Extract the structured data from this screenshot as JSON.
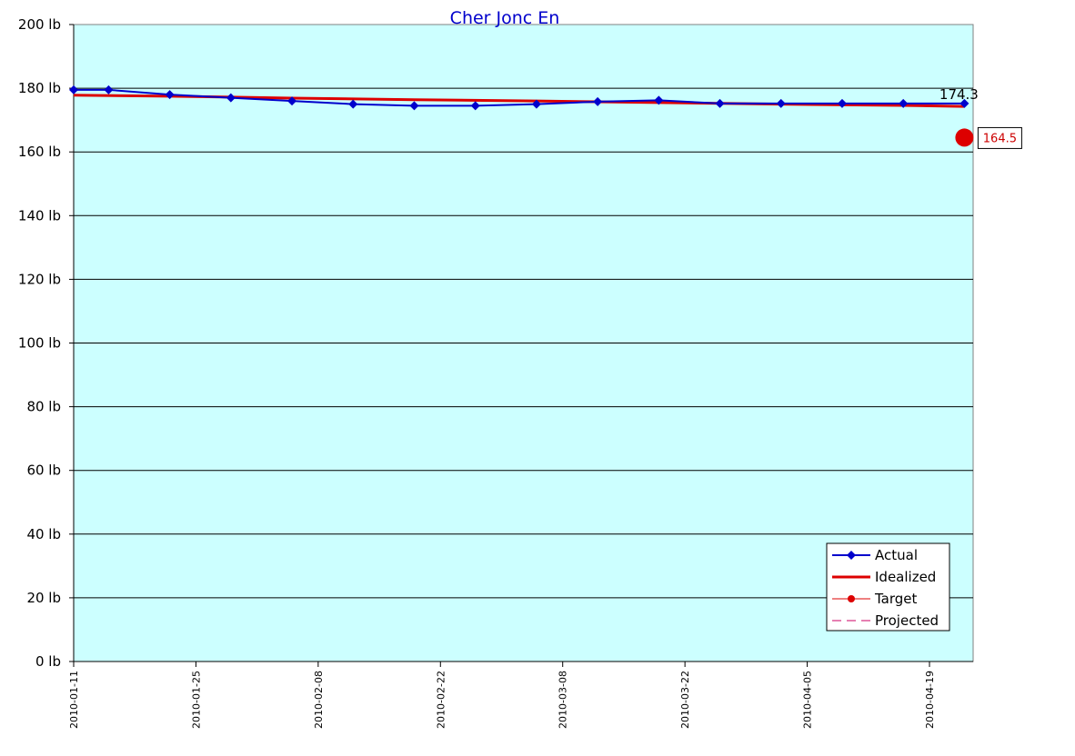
{
  "chart_data": {
    "type": "line",
    "title": "Cher Jonc En",
    "ylim": [
      0,
      200
    ],
    "y_ticks": [
      {
        "value": 0,
        "label": "0 lb"
      },
      {
        "value": 20,
        "label": "20 lb"
      },
      {
        "value": 40,
        "label": "40 lb"
      },
      {
        "value": 60,
        "label": "60 lb"
      },
      {
        "value": 80,
        "label": "80 lb"
      },
      {
        "value": 100,
        "label": "100 lb"
      },
      {
        "value": 120,
        "label": "120 lb"
      },
      {
        "value": 140,
        "label": "140 lb"
      },
      {
        "value": 160,
        "label": "160 lb"
      },
      {
        "value": 180,
        "label": "180 lb"
      },
      {
        "value": 200,
        "label": "200 lb"
      }
    ],
    "xlim": [
      "2010-01-11",
      "2010-04-24"
    ],
    "x_ticks": [
      "2010-01-11",
      "2010-01-25",
      "2010-02-08",
      "2010-02-22",
      "2010-03-08",
      "2010-03-22",
      "2010-04-05",
      "2010-04-19"
    ],
    "grid": "horizontal",
    "plot_background": "#ccffff",
    "legend_position": "bottom-right",
    "series": [
      {
        "name": "Actual",
        "color": "#0000cc",
        "marker": "diamond",
        "points": [
          {
            "x": "2010-01-11",
            "y": 179.5
          },
          {
            "x": "2010-01-15",
            "y": 179.5
          },
          {
            "x": "2010-01-22",
            "y": 178.0
          },
          {
            "x": "2010-01-29",
            "y": 177.0
          },
          {
            "x": "2010-02-05",
            "y": 176.0
          },
          {
            "x": "2010-02-12",
            "y": 175.0
          },
          {
            "x": "2010-02-19",
            "y": 174.5
          },
          {
            "x": "2010-02-26",
            "y": 174.5
          },
          {
            "x": "2010-03-05",
            "y": 175.0
          },
          {
            "x": "2010-03-12",
            "y": 175.8
          },
          {
            "x": "2010-03-19",
            "y": 176.2
          },
          {
            "x": "2010-03-26",
            "y": 175.2
          },
          {
            "x": "2010-04-02",
            "y": 175.2
          },
          {
            "x": "2010-04-09",
            "y": 175.2
          },
          {
            "x": "2010-04-16",
            "y": 175.2
          },
          {
            "x": "2010-04-23",
            "y": 175.2
          }
        ]
      },
      {
        "name": "Idealized",
        "color": "#dd0000",
        "marker": "none",
        "points": [
          {
            "x": "2010-01-11",
            "y": 177.8
          },
          {
            "x": "2010-01-22",
            "y": 177.5
          },
          {
            "x": "2010-02-05",
            "y": 176.9
          },
          {
            "x": "2010-02-19",
            "y": 176.4
          },
          {
            "x": "2010-03-05",
            "y": 176.0
          },
          {
            "x": "2010-03-19",
            "y": 175.5
          },
          {
            "x": "2010-04-02",
            "y": 175.0
          },
          {
            "x": "2010-04-16",
            "y": 174.6
          },
          {
            "x": "2010-04-23",
            "y": 174.3
          }
        ]
      },
      {
        "name": "Target",
        "color": "#dd0000",
        "marker": "circle",
        "points": [
          {
            "x": "2010-04-23",
            "y": 164.5
          }
        ]
      },
      {
        "name": "Projected",
        "color": "#cc0066",
        "marker": "none",
        "points": []
      }
    ],
    "annotations": [
      {
        "text": "174.3",
        "x": "2010-04-23",
        "y": 174.3,
        "kind": "last-value"
      },
      {
        "text": "164.5",
        "x": "2010-04-23",
        "y": 164.5,
        "kind": "target-value"
      }
    ]
  }
}
